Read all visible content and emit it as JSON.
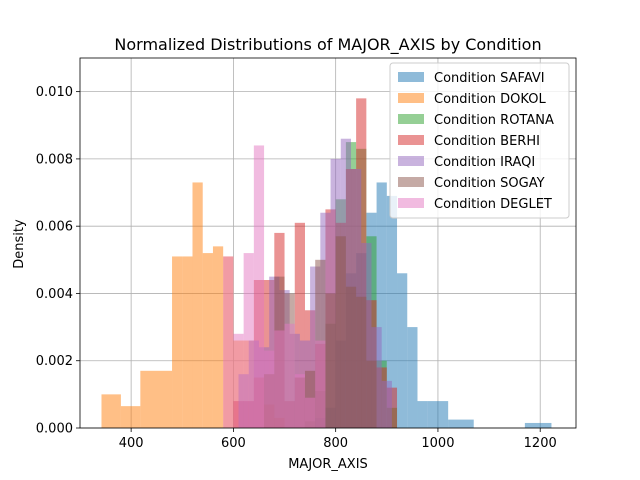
{
  "chart_data": {
    "type": "histogram",
    "title": "Normalized Distributions of MAJOR_AXIS by Condition",
    "xlabel": "MAJOR_AXIS",
    "ylabel": "Density",
    "xlim": [
      300,
      1270
    ],
    "ylim": [
      0,
      0.011
    ],
    "x_ticks": [
      400,
      600,
      800,
      1000,
      1200
    ],
    "y_ticks": [
      0.0,
      0.002,
      0.004,
      0.006,
      0.008,
      0.01
    ],
    "y_tick_labels": [
      "0.000",
      "0.002",
      "0.004",
      "0.006",
      "0.008",
      "0.010"
    ],
    "grid": true,
    "legend_position": "upper right",
    "bar_opacity": 0.5,
    "series": [
      {
        "name": "Condition SAFAVI",
        "color": "#1f77b4",
        "bin_edges": [
          760,
          780,
          800,
          820,
          840,
          860,
          880,
          900,
          920,
          940,
          960,
          980,
          1020,
          1070,
          1120,
          1170,
          1222
        ],
        "densities": [
          0.0003,
          0.0006,
          0.0026,
          0.0046,
          0.0052,
          0.0064,
          0.0073,
          0.0069,
          0.0046,
          0.003,
          0.0008,
          0.0008,
          0.00025,
          0,
          0,
          0.00015
        ]
      },
      {
        "name": "Condition DOKOL",
        "color": "#ff7f0e",
        "bin_edges": [
          342,
          380,
          418,
          480,
          500,
          520,
          540,
          560,
          580,
          600,
          620,
          640,
          660,
          680,
          700
        ],
        "densities": [
          0.001,
          0.00065,
          0.0017,
          0.0051,
          0.0051,
          0.0073,
          0.0052,
          0.0054,
          0.0051,
          0.0026,
          0.0026,
          0.0015,
          0.0007,
          0.0003
        ]
      },
      {
        "name": "Condition ROTANA",
        "color": "#2ca02c",
        "bin_edges": [
          740,
          760,
          780,
          800,
          820,
          840,
          860,
          880,
          900,
          920
        ],
        "densities": [
          0.0002,
          0.0011,
          0.0031,
          0.0068,
          0.0085,
          0.0083,
          0.0057,
          0.002,
          0.0006
        ]
      },
      {
        "name": "Condition BERHI",
        "color": "#d62728",
        "bin_edges": [
          600,
          640,
          680,
          700,
          720,
          740,
          760,
          780,
          800,
          820,
          840,
          860,
          880,
          900,
          920
        ],
        "densities": [
          0.0008,
          0.0044,
          0.0058,
          0.0008,
          0.0061,
          0.0035,
          0.0025,
          0.0065,
          0.0061,
          0.0077,
          0.0098,
          0.0038,
          0.0018,
          0.0012
        ]
      },
      {
        "name": "Condition IRAQI",
        "color": "#9467bd",
        "bin_edges": [
          610,
          630,
          650,
          670,
          690,
          710,
          730,
          750,
          770,
          790,
          810,
          830,
          850,
          870,
          890,
          910
        ],
        "densities": [
          0.0016,
          0.0026,
          0.0024,
          0.0045,
          0.0041,
          0.0028,
          0.0026,
          0.0048,
          0.0064,
          0.008,
          0.0086,
          0.0077,
          0.0055,
          0.003,
          0.0014
        ]
      },
      {
        "name": "Condition SOGAY",
        "color": "#8c564b",
        "bin_edges": [
          660,
          680,
          700,
          720,
          740,
          760,
          780,
          800,
          820,
          840,
          860,
          880
        ],
        "densities": [
          0.0016,
          0.0045,
          0.004,
          0.0015,
          0.0017,
          0.005,
          0.004,
          0.0057,
          0.0042,
          0.0039,
          0.002
        ]
      },
      {
        "name": "Condition DEGLET",
        "color": "#e377c2",
        "bin_edges": [
          580,
          600,
          620,
          640,
          660,
          680,
          700,
          720,
          740,
          760,
          780
        ],
        "densities": [
          0.0051,
          0.0028,
          0.0052,
          0.0084,
          0.0023,
          0.0029,
          0.0031,
          0.0016,
          0.0009,
          0.0026
        ]
      }
    ]
  }
}
